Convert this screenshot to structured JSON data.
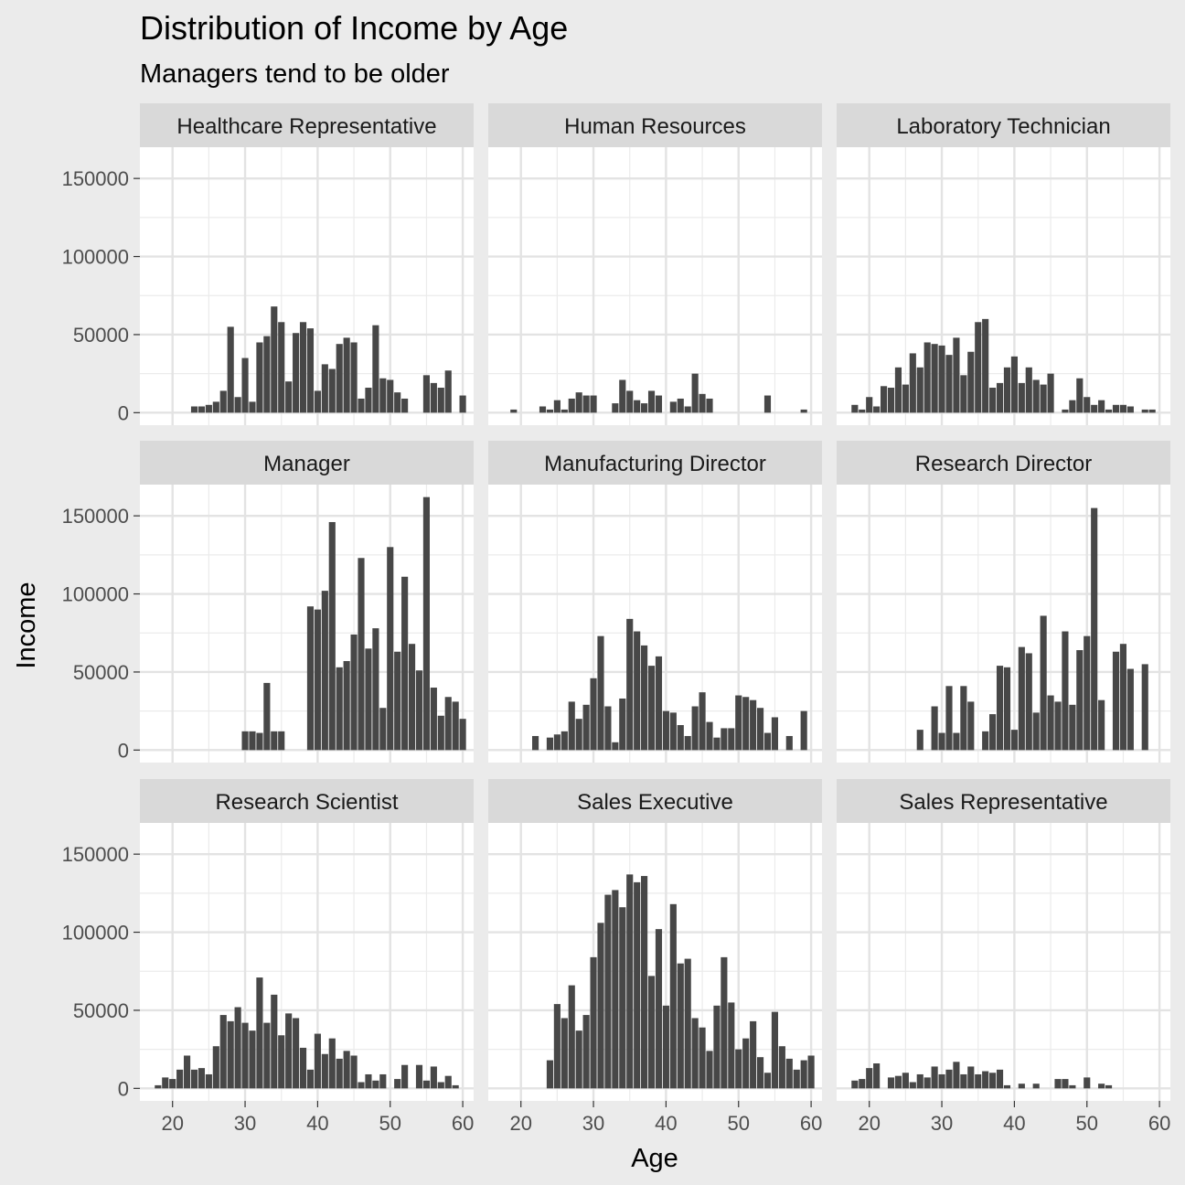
{
  "chart_data": {
    "type": "bar",
    "title": "Distribution of Income by Age",
    "subtitle": "Managers tend to be older",
    "xlabel": "Age",
    "ylabel": "Income",
    "xlim": [
      15.5,
      61.5
    ],
    "ylim": [
      -8000,
      170000
    ],
    "x_ticks": [
      20,
      30,
      40,
      50,
      60
    ],
    "y_ticks": [
      0,
      50000,
      100000,
      150000
    ],
    "y_tick_labels": [
      "0",
      "50000",
      "100000",
      "150000"
    ],
    "grid": true,
    "bar_color": "#474747",
    "panel_background": "#ffffff",
    "strip_background": "#d9d9d9",
    "plot_background": "#ebebeb",
    "facets": [
      {
        "label": "Healthcare Representative",
        "x": [
          23,
          24,
          25,
          26,
          27,
          28,
          29,
          30,
          31,
          32,
          33,
          34,
          35,
          36,
          37,
          38,
          39,
          40,
          41,
          42,
          43,
          44,
          45,
          46,
          47,
          48,
          49,
          50,
          51,
          52,
          53,
          55,
          56,
          57,
          58,
          60
        ],
        "values": [
          4000,
          4000,
          5000,
          7000,
          14000,
          55000,
          10000,
          35000,
          7000,
          45000,
          49000,
          68000,
          58000,
          20000,
          51000,
          58000,
          54000,
          14000,
          31000,
          28000,
          44000,
          48000,
          45000,
          9000,
          16000,
          56000,
          22000,
          21000,
          13000,
          9000,
          0,
          24000,
          19000,
          16000,
          27000,
          11000
        ]
      },
      {
        "label": "Human Resources",
        "x": [
          19,
          23,
          24,
          25,
          26,
          27,
          28,
          29,
          30,
          31,
          33,
          34,
          35,
          36,
          37,
          38,
          39,
          41,
          42,
          43,
          44,
          45,
          46,
          54,
          59
        ],
        "values": [
          2000,
          4000,
          2000,
          8000,
          2000,
          9000,
          13000,
          11000,
          11000,
          0,
          6000,
          21000,
          14000,
          8000,
          6000,
          14000,
          11000,
          7000,
          9000,
          4000,
          25000,
          12000,
          9000,
          11000,
          2000
        ]
      },
      {
        "label": "Laboratory Technician",
        "x": [
          18,
          19,
          20,
          21,
          22,
          23,
          24,
          25,
          26,
          27,
          28,
          29,
          30,
          31,
          32,
          33,
          34,
          35,
          36,
          37,
          38,
          39,
          40,
          41,
          42,
          43,
          44,
          45,
          46,
          47,
          48,
          49,
          50,
          51,
          52,
          53,
          54,
          55,
          56,
          58,
          59
        ],
        "values": [
          5000,
          2000,
          10000,
          4000,
          17000,
          16000,
          29000,
          18000,
          38000,
          29000,
          45000,
          44000,
          43000,
          37000,
          48000,
          24000,
          39000,
          58000,
          60000,
          16000,
          19000,
          29000,
          36000,
          19000,
          29000,
          21000,
          18000,
          25000,
          0,
          2000,
          8000,
          22000,
          10000,
          5000,
          8000,
          2000,
          5000,
          5000,
          4000,
          2000,
          2000
        ]
      },
      {
        "label": "Manager",
        "x": [
          30,
          31,
          32,
          33,
          34,
          35,
          39,
          40,
          41,
          42,
          43,
          44,
          45,
          46,
          47,
          48,
          49,
          50,
          51,
          52,
          53,
          54,
          55,
          56,
          57,
          58,
          59,
          60
        ],
        "values": [
          12000,
          12000,
          11000,
          43000,
          12000,
          12000,
          92000,
          90000,
          102000,
          146000,
          53000,
          57000,
          74000,
          123000,
          65000,
          78000,
          27000,
          130000,
          63000,
          111000,
          68000,
          51000,
          162000,
          40000,
          22000,
          34000,
          31000,
          20000
        ]
      },
      {
        "label": "Manufacturing Director",
        "x": [
          22,
          24,
          25,
          26,
          27,
          28,
          29,
          30,
          31,
          32,
          33,
          34,
          35,
          36,
          37,
          38,
          39,
          40,
          41,
          42,
          43,
          44,
          45,
          46,
          47,
          48,
          49,
          50,
          51,
          52,
          53,
          54,
          55,
          56,
          57,
          59
        ],
        "values": [
          9000,
          8000,
          10000,
          12000,
          31000,
          20000,
          29000,
          46000,
          73000,
          28000,
          5000,
          33000,
          84000,
          76000,
          67000,
          54000,
          60000,
          25000,
          24000,
          16000,
          9000,
          28000,
          37000,
          18000,
          8000,
          14000,
          14000,
          35000,
          34000,
          32000,
          27000,
          11000,
          21000,
          0,
          9000,
          25000
        ]
      },
      {
        "label": "Research Director",
        "x": [
          27,
          29,
          30,
          31,
          32,
          33,
          34,
          35,
          36,
          37,
          38,
          39,
          40,
          41,
          42,
          43,
          44,
          45,
          46,
          47,
          48,
          49,
          50,
          51,
          52,
          53,
          54,
          55,
          56,
          58
        ],
        "values": [
          13000,
          28000,
          11000,
          41000,
          11000,
          41000,
          31000,
          0,
          12000,
          23000,
          54000,
          53000,
          13000,
          66000,
          62000,
          24000,
          86000,
          35000,
          31000,
          76000,
          29000,
          64000,
          73000,
          155000,
          32000,
          0,
          63000,
          68000,
          52000,
          55000
        ]
      },
      {
        "label": "Research Scientist",
        "x": [
          18,
          19,
          20,
          21,
          22,
          23,
          24,
          25,
          26,
          27,
          28,
          29,
          30,
          31,
          32,
          33,
          34,
          35,
          36,
          37,
          38,
          39,
          40,
          41,
          42,
          43,
          44,
          45,
          46,
          47,
          48,
          49,
          50,
          51,
          52,
          53,
          54,
          55,
          56,
          57,
          58,
          59
        ],
        "values": [
          2000,
          7000,
          6000,
          12000,
          21000,
          12000,
          13000,
          9000,
          27000,
          47000,
          43000,
          52000,
          42000,
          37000,
          71000,
          42000,
          60000,
          34000,
          48000,
          45000,
          26000,
          12000,
          35000,
          22000,
          32000,
          19000,
          24000,
          21000,
          4000,
          9000,
          5000,
          9000,
          0,
          6000,
          15000,
          0,
          15000,
          5000,
          14000,
          4000,
          8000,
          2000
        ]
      },
      {
        "label": "Sales Executive",
        "x": [
          24,
          25,
          26,
          27,
          28,
          29,
          30,
          31,
          32,
          33,
          34,
          35,
          36,
          37,
          38,
          39,
          40,
          41,
          42,
          43,
          44,
          45,
          46,
          47,
          48,
          49,
          50,
          51,
          52,
          53,
          54,
          55,
          56,
          57,
          58,
          59,
          60
        ],
        "values": [
          18000,
          54000,
          45000,
          66000,
          37000,
          47000,
          84000,
          106000,
          124000,
          127000,
          116000,
          137000,
          132000,
          136000,
          72000,
          102000,
          53000,
          118000,
          80000,
          83000,
          45000,
          39000,
          24000,
          53000,
          84000,
          55000,
          25000,
          32000,
          43000,
          20000,
          10000,
          49000,
          27000,
          19000,
          12000,
          18000,
          21000
        ]
      },
      {
        "label": "Sales Representative",
        "x": [
          18,
          19,
          20,
          21,
          23,
          24,
          25,
          26,
          27,
          28,
          29,
          30,
          31,
          32,
          33,
          34,
          35,
          36,
          37,
          38,
          39,
          41,
          43,
          46,
          47,
          48,
          50,
          52,
          53
        ],
        "values": [
          5000,
          6000,
          13000,
          16000,
          7000,
          8000,
          10000,
          4000,
          9000,
          7000,
          14000,
          9000,
          12000,
          17000,
          9000,
          14000,
          9000,
          11000,
          10000,
          12000,
          2000,
          3000,
          3000,
          6000,
          6000,
          2000,
          7000,
          3000,
          2000
        ]
      }
    ]
  }
}
